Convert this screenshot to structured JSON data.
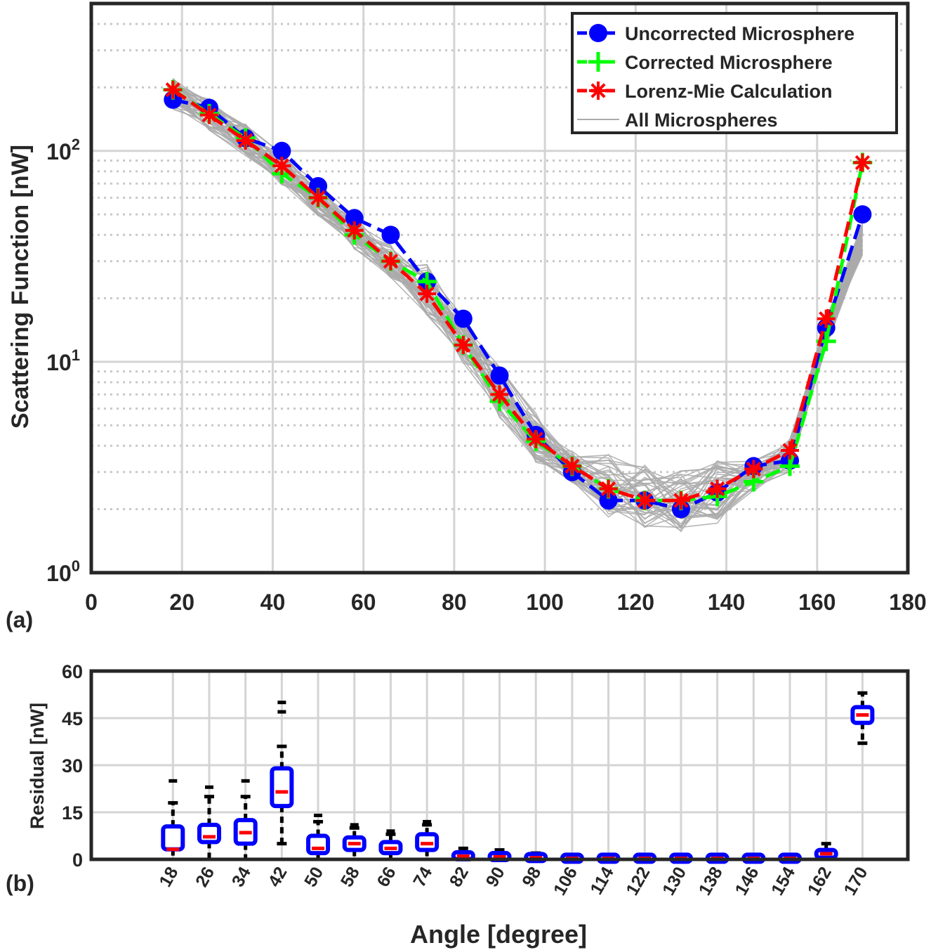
{
  "chart_data": [
    {
      "type": "line",
      "panel_label": "(a)",
      "ylabel": "Scattering Function [nW]",
      "xlabel": "",
      "xlim": [
        0,
        180
      ],
      "ylim": [
        1,
        500
      ],
      "yscale": "log",
      "x_ticks": [
        "0",
        "20",
        "40",
        "60",
        "80",
        "100",
        "120",
        "140",
        "160",
        "180"
      ],
      "y_tick_labels": [
        {
          "base": "10",
          "exp": "0"
        },
        {
          "base": "10",
          "exp": "1"
        },
        {
          "base": "10",
          "exp": "2"
        }
      ],
      "grid": true,
      "legend_position": "top-right",
      "x": [
        18,
        26,
        34,
        42,
        50,
        58,
        66,
        74,
        82,
        90,
        98,
        106,
        114,
        122,
        130,
        138,
        146,
        154,
        162,
        170
      ],
      "series": [
        {
          "name": "Uncorrected Microsphere",
          "color": "#0000ff",
          "marker": "circle",
          "values": [
            175,
            160,
            115,
            100,
            68,
            48,
            40,
            24,
            16,
            8.6,
            4.5,
            3.0,
            2.2,
            2.2,
            2.0,
            2.4,
            3.2,
            3.4,
            14.5,
            50
          ]
        },
        {
          "name": "Corrected Microsphere",
          "color": "#00ff00",
          "marker": "plus",
          "values": [
            195,
            150,
            115,
            78,
            60,
            40,
            30,
            24,
            12,
            6.5,
            4.2,
            3.2,
            2.5,
            2.2,
            2.2,
            2.3,
            2.7,
            3.2,
            12.5,
            88
          ]
        },
        {
          "name": "Lorenz-Mie Calculation",
          "color": "#ff0000",
          "marker": "asterisk",
          "values": [
            195,
            148,
            112,
            85,
            60,
            42,
            30,
            21,
            12,
            7.0,
            4.3,
            3.2,
            2.5,
            2.2,
            2.2,
            2.5,
            3.1,
            3.8,
            16,
            88
          ]
        },
        {
          "name": "All Microspheres",
          "color": "#aaaaaa",
          "marker": "none",
          "values": [
            185,
            150,
            113,
            82,
            59,
            41,
            30,
            22,
            12.5,
            7.2,
            4.4,
            3.2,
            2.6,
            2.3,
            2.2,
            2.4,
            2.9,
            3.6,
            14,
            38
          ]
        }
      ]
    },
    {
      "type": "box",
      "panel_label": "(b)",
      "ylabel": "Residual [nW]",
      "xlabel": "Angle [degree]",
      "ylim": [
        0,
        60
      ],
      "y_ticks": [
        "0",
        "15",
        "30",
        "45",
        "60"
      ],
      "grid": true,
      "categories": [
        "18",
        "26",
        "34",
        "42",
        "50",
        "58",
        "66",
        "74",
        "82",
        "90",
        "98",
        "106",
        "114",
        "122",
        "130",
        "138",
        "146",
        "154",
        "162",
        "170"
      ],
      "boxes": [
        {
          "min": 0,
          "q1": 3.2,
          "median": 3.2,
          "q3": 10.5,
          "max": 18,
          "outliers": [
            25
          ]
        },
        {
          "min": 0,
          "q1": 5.5,
          "median": 7.2,
          "q3": 11,
          "max": 20,
          "outliers": [
            23
          ]
        },
        {
          "min": 0,
          "q1": 5,
          "median": 8.5,
          "q3": 12.5,
          "max": 20,
          "outliers": [
            25
          ]
        },
        {
          "min": 5,
          "q1": 17,
          "median": 21.5,
          "q3": 29,
          "max": 36,
          "outliers": [
            47,
            50
          ]
        },
        {
          "min": 0,
          "q1": 2,
          "median": 3.5,
          "q3": 7.5,
          "max": 12,
          "outliers": [
            14
          ]
        },
        {
          "min": 0,
          "q1": 3,
          "median": 5,
          "q3": 7,
          "max": 10,
          "outliers": [
            11
          ]
        },
        {
          "min": 0,
          "q1": 2,
          "median": 3.5,
          "q3": 5.5,
          "max": 8,
          "outliers": [
            9
          ]
        },
        {
          "min": 0,
          "q1": 3,
          "median": 5,
          "q3": 8,
          "max": 11,
          "outliers": [
            12
          ]
        },
        {
          "min": 0,
          "q1": 0.3,
          "median": 1,
          "q3": 2,
          "max": 3.5,
          "outliers": []
        },
        {
          "min": 0,
          "q1": 0.3,
          "median": 0.8,
          "q3": 1.5,
          "max": 3,
          "outliers": []
        },
        {
          "min": 0,
          "q1": 0.2,
          "median": 0.5,
          "q3": 1,
          "max": 2,
          "outliers": []
        },
        {
          "min": 0,
          "q1": 0.1,
          "median": 0.3,
          "q3": 0.6,
          "max": 1.2,
          "outliers": []
        },
        {
          "min": 0,
          "q1": 0.1,
          "median": 0.3,
          "q3": 0.6,
          "max": 1.2,
          "outliers": []
        },
        {
          "min": 0,
          "q1": 0.1,
          "median": 0.3,
          "q3": 0.6,
          "max": 1.2,
          "outliers": []
        },
        {
          "min": 0,
          "q1": 0.1,
          "median": 0.3,
          "q3": 0.6,
          "max": 1,
          "outliers": []
        },
        {
          "min": 0,
          "q1": 0.1,
          "median": 0.3,
          "q3": 0.6,
          "max": 1,
          "outliers": []
        },
        {
          "min": 0,
          "q1": 0.1,
          "median": 0.3,
          "q3": 0.6,
          "max": 1,
          "outliers": []
        },
        {
          "min": 0,
          "q1": 0.1,
          "median": 0.3,
          "q3": 0.6,
          "max": 1,
          "outliers": []
        },
        {
          "min": 0,
          "q1": 0.5,
          "median": 1.8,
          "q3": 3,
          "max": 5,
          "outliers": []
        },
        {
          "min": 37,
          "q1": 43.5,
          "median": 46,
          "q3": 48.5,
          "max": 53,
          "outliers": []
        }
      ],
      "colors": {
        "box": "#0000ff",
        "median": "#ff0000",
        "whisker": "#000000"
      }
    }
  ]
}
